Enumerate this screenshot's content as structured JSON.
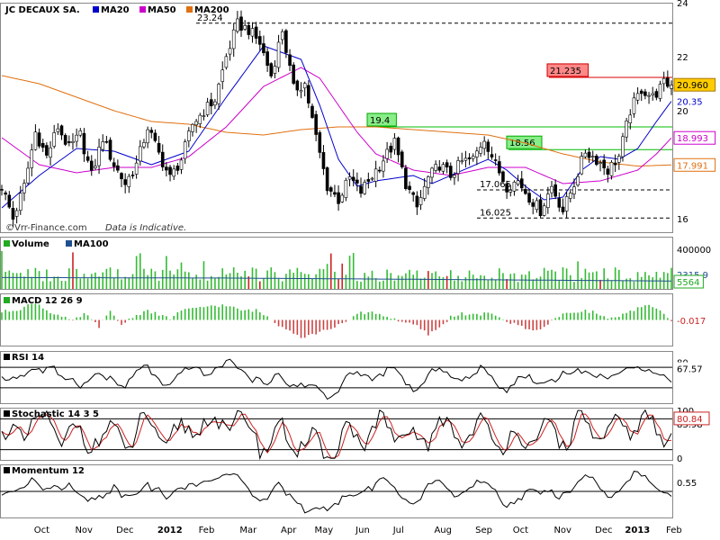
{
  "chart_data": {
    "type": "stock-chart",
    "title": "JC DECAUX SA.",
    "watermark": "©Vrr-Finance.com",
    "disclaimer": "Data is Indicative.",
    "price_panel": {
      "legend": [
        {
          "name": "MA20",
          "color": "#0000cc"
        },
        {
          "name": "MA50",
          "color": "#cc00cc"
        },
        {
          "name": "MA200",
          "color": "#e07010"
        }
      ],
      "ylim": [
        15.5,
        24.0
      ],
      "y_ticks": [
        16,
        18,
        20,
        22,
        24
      ],
      "levels": [
        {
          "label": "23.24",
          "value": 23.24,
          "style": "dashed",
          "color": "#000000"
        },
        {
          "label": "19.4",
          "value": 19.4,
          "style": "solid",
          "color": "#00bb00"
        },
        {
          "label": "18.56",
          "value": 18.56,
          "style": "solid",
          "color": "#00bb00"
        },
        {
          "label": "17.065",
          "value": 17.065,
          "style": "dashed",
          "color": "#000000"
        },
        {
          "label": "16.025",
          "value": 16.025,
          "style": "dashed",
          "color": "#000000"
        },
        {
          "label": "21.235",
          "value": 21.235,
          "style": "solid",
          "color": "#dd0000"
        }
      ],
      "last_values": [
        {
          "label": "20.960",
          "value": 20.96,
          "series": "close"
        },
        {
          "label": "20.35",
          "value": 20.35,
          "series": "MA20"
        },
        {
          "label": "18.993",
          "value": 18.993,
          "series": "MA50"
        },
        {
          "label": "17.991",
          "value": 17.991,
          "series": "MA200"
        }
      ],
      "close_path": [
        [
          0,
          17.2
        ],
        [
          3,
          16.0
        ],
        [
          6,
          17.2
        ],
        [
          9,
          19.2
        ],
        [
          12,
          18.3
        ],
        [
          15,
          19.4
        ],
        [
          18,
          18.6
        ],
        [
          21,
          19.1
        ],
        [
          24,
          17.6
        ],
        [
          27,
          19.0
        ],
        [
          30,
          18.0
        ],
        [
          33,
          17.3
        ],
        [
          36,
          18.0
        ],
        [
          39,
          19.4
        ],
        [
          42,
          18.4
        ],
        [
          45,
          17.5
        ],
        [
          48,
          18.2
        ],
        [
          51,
          19.5
        ],
        [
          54,
          20.0
        ],
        [
          57,
          20.4
        ],
        [
          60,
          22.0
        ],
        [
          63,
          23.2
        ],
        [
          66,
          23.0
        ],
        [
          69,
          22.5
        ],
        [
          72,
          21.3
        ],
        [
          75,
          23.0
        ],
        [
          78,
          20.8
        ],
        [
          81,
          21.0
        ],
        [
          84,
          19.0
        ],
        [
          87,
          17.2
        ],
        [
          90,
          16.7
        ],
        [
          93,
          17.5
        ],
        [
          96,
          17.0
        ],
        [
          99,
          17.6
        ],
        [
          102,
          18.2
        ],
        [
          105,
          18.8
        ],
        [
          108,
          17.3
        ],
        [
          111,
          16.4
        ],
        [
          114,
          17.5
        ],
        [
          117,
          18.0
        ],
        [
          120,
          17.6
        ],
        [
          123,
          18.1
        ],
        [
          126,
          18.2
        ],
        [
          129,
          19.0
        ],
        [
          132,
          18.0
        ],
        [
          135,
          17.2
        ],
        [
          138,
          17.4
        ],
        [
          141,
          16.8
        ],
        [
          144,
          16.3
        ],
        [
          147,
          17.2
        ],
        [
          150,
          16.3
        ],
        [
          153,
          17.3
        ],
        [
          156,
          18.5
        ],
        [
          159,
          18.2
        ],
        [
          162,
          17.8
        ],
        [
          165,
          18.3
        ],
        [
          168,
          20.0
        ],
        [
          171,
          20.8
        ],
        [
          174,
          20.5
        ],
        [
          177,
          21.0
        ],
        [
          179,
          20.96
        ]
      ],
      "ma20_path": [
        [
          0,
          16.4
        ],
        [
          10,
          17.6
        ],
        [
          20,
          18.6
        ],
        [
          30,
          18.5
        ],
        [
          40,
          18.0
        ],
        [
          50,
          18.5
        ],
        [
          60,
          20.5
        ],
        [
          70,
          22.4
        ],
        [
          80,
          21.9
        ],
        [
          85,
          20.2
        ],
        [
          90,
          18.2
        ],
        [
          95,
          17.2
        ],
        [
          100,
          17.4
        ],
        [
          110,
          17.6
        ],
        [
          115,
          17.3
        ],
        [
          120,
          17.6
        ],
        [
          130,
          18.2
        ],
        [
          135,
          17.8
        ],
        [
          140,
          17.2
        ],
        [
          145,
          16.7
        ],
        [
          150,
          16.8
        ],
        [
          155,
          17.8
        ],
        [
          160,
          18.3
        ],
        [
          165,
          18.2
        ],
        [
          170,
          18.6
        ],
        [
          175,
          19.6
        ],
        [
          179,
          20.35
        ]
      ],
      "ma50_path": [
        [
          0,
          19.0
        ],
        [
          10,
          18.0
        ],
        [
          20,
          17.7
        ],
        [
          30,
          17.9
        ],
        [
          40,
          17.9
        ],
        [
          50,
          18.3
        ],
        [
          60,
          19.4
        ],
        [
          70,
          20.9
        ],
        [
          80,
          21.6
        ],
        [
          85,
          21.2
        ],
        [
          90,
          20.2
        ],
        [
          95,
          19.2
        ],
        [
          100,
          18.4
        ],
        [
          110,
          17.8
        ],
        [
          120,
          17.6
        ],
        [
          130,
          17.9
        ],
        [
          140,
          17.9
        ],
        [
          145,
          17.6
        ],
        [
          150,
          17.3
        ],
        [
          160,
          17.4
        ],
        [
          170,
          17.8
        ],
        [
          175,
          18.4
        ],
        [
          179,
          18.993
        ]
      ],
      "ma200_path": [
        [
          0,
          21.3
        ],
        [
          10,
          21.0
        ],
        [
          20,
          20.5
        ],
        [
          30,
          20.0
        ],
        [
          40,
          19.6
        ],
        [
          50,
          19.5
        ],
        [
          60,
          19.2
        ],
        [
          70,
          19.1
        ],
        [
          80,
          19.3
        ],
        [
          90,
          19.4
        ],
        [
          100,
          19.4
        ],
        [
          110,
          19.3
        ],
        [
          120,
          19.2
        ],
        [
          130,
          19.1
        ],
        [
          140,
          18.8
        ],
        [
          150,
          18.4
        ],
        [
          160,
          18.1
        ],
        [
          170,
          17.95
        ],
        [
          179,
          17.991
        ]
      ]
    },
    "x_axis": {
      "n_points": 180,
      "labels": [
        {
          "label": "Oct",
          "pos": 11
        },
        {
          "label": "Nov",
          "pos": 22
        },
        {
          "label": "Dec",
          "pos": 33
        },
        {
          "label": "2012",
          "pos": 44,
          "bold": true
        },
        {
          "label": "Feb",
          "pos": 55
        },
        {
          "label": "Mar",
          "pos": 66
        },
        {
          "label": "Apr",
          "pos": 77
        },
        {
          "label": "May",
          "pos": 86
        },
        {
          "label": "Jun",
          "pos": 97
        },
        {
          "label": "Jul",
          "pos": 107
        },
        {
          "label": "Aug",
          "pos": 118
        },
        {
          "label": "Sep",
          "pos": 129
        },
        {
          "label": "Oct",
          "pos": 139
        },
        {
          "label": "Nov",
          "pos": 150
        },
        {
          "label": "Dec",
          "pos": 161
        },
        {
          "label": "2013",
          "pos": 169,
          "bold": true
        },
        {
          "label": "Feb",
          "pos": 180
        }
      ]
    },
    "volume_panel": {
      "legend": [
        {
          "name": "Volume",
          "color": "#22aa22"
        },
        {
          "name": "MA100",
          "color": "#1f4f8f"
        }
      ],
      "ylim": [
        0,
        520000
      ],
      "y_ticks": [
        {
          "label": "400000",
          "value": 400000
        }
      ],
      "last_values": [
        {
          "label": "5564",
          "series": "Volume"
        },
        {
          "label": "2315.9",
          "series": "MA100"
        }
      ],
      "ma100_path": [
        [
          0,
          115000
        ],
        [
          60,
          110000
        ],
        [
          120,
          95000
        ],
        [
          179,
          80000
        ]
      ]
    },
    "macd_panel": {
      "legend": [
        {
          "name": "MACD 12 26 9",
          "color": "#22aa22"
        }
      ],
      "ylim": [
        -0.8,
        0.8
      ],
      "last_values": [
        {
          "label": "-0.017",
          "value": -0.017
        }
      ],
      "hist_path": [
        [
          0,
          0.25
        ],
        [
          5,
          0.35
        ],
        [
          9,
          0.55
        ],
        [
          12,
          0.3
        ],
        [
          16,
          0.1
        ],
        [
          19,
          -0.05
        ],
        [
          22,
          0.2
        ],
        [
          26,
          -0.2
        ],
        [
          29,
          0.25
        ],
        [
          32,
          -0.15
        ],
        [
          35,
          0.1
        ],
        [
          39,
          0.3
        ],
        [
          42,
          0.15
        ],
        [
          45,
          0.05
        ],
        [
          48,
          0.3
        ],
        [
          52,
          0.35
        ],
        [
          56,
          0.45
        ],
        [
          60,
          0.45
        ],
        [
          64,
          0.3
        ],
        [
          68,
          0.3
        ],
        [
          71,
          0.1
        ],
        [
          74,
          -0.15
        ],
        [
          77,
          -0.3
        ],
        [
          80,
          -0.55
        ],
        [
          83,
          -0.45
        ],
        [
          86,
          -0.35
        ],
        [
          89,
          -0.2
        ],
        [
          92,
          -0.1
        ],
        [
          95,
          0.2
        ],
        [
          99,
          0.25
        ],
        [
          103,
          0.1
        ],
        [
          107,
          -0.05
        ],
        [
          111,
          -0.2
        ],
        [
          114,
          -0.45
        ],
        [
          117,
          -0.25
        ],
        [
          120,
          0.1
        ],
        [
          123,
          0.2
        ],
        [
          126,
          0.15
        ],
        [
          130,
          0.2
        ],
        [
          133,
          0.1
        ],
        [
          136,
          -0.1
        ],
        [
          139,
          -0.2
        ],
        [
          142,
          -0.35
        ],
        [
          145,
          -0.2
        ],
        [
          148,
          0.05
        ],
        [
          151,
          0.2
        ],
        [
          155,
          0.3
        ],
        [
          158,
          0.25
        ],
        [
          161,
          0.1
        ],
        [
          164,
          0.05
        ],
        [
          167,
          0.2
        ],
        [
          171,
          0.4
        ],
        [
          174,
          0.45
        ],
        [
          177,
          0.2
        ],
        [
          179,
          -0.017
        ]
      ]
    },
    "rsi_panel": {
      "legend": [
        {
          "name": "RSI 14",
          "color": "#000000"
        }
      ],
      "ylim": [
        0,
        100
      ],
      "y_ticks": [
        {
          "label": "80",
          "value": 80
        }
      ],
      "levels": [
        70,
        30
      ],
      "last_values": [
        {
          "label": "67.57",
          "value": 67.57
        }
      ]
    },
    "stochastic_panel": {
      "legend": [
        {
          "name": "Stochastic 14 3 5",
          "color": "#000000"
        }
      ],
      "ylim": [
        0,
        100
      ],
      "y_ticks": [
        {
          "label": "100",
          "value": 100
        },
        {
          "label": "0",
          "value": 0
        }
      ],
      "levels": [
        80,
        20
      ],
      "last_values": [
        {
          "label": "80.84",
          "value": 80.84,
          "series": "%K"
        },
        {
          "label": "83.98",
          "value": 83.98,
          "series": "%D"
        }
      ]
    },
    "momentum_panel": {
      "legend": [
        {
          "name": "Momentum 12",
          "color": "#000000"
        }
      ],
      "ylim": [
        -1.6,
        1.6
      ],
      "levels": [
        0
      ],
      "last_values": [
        {
          "label": "0.55",
          "value": 0.55
        }
      ]
    }
  }
}
